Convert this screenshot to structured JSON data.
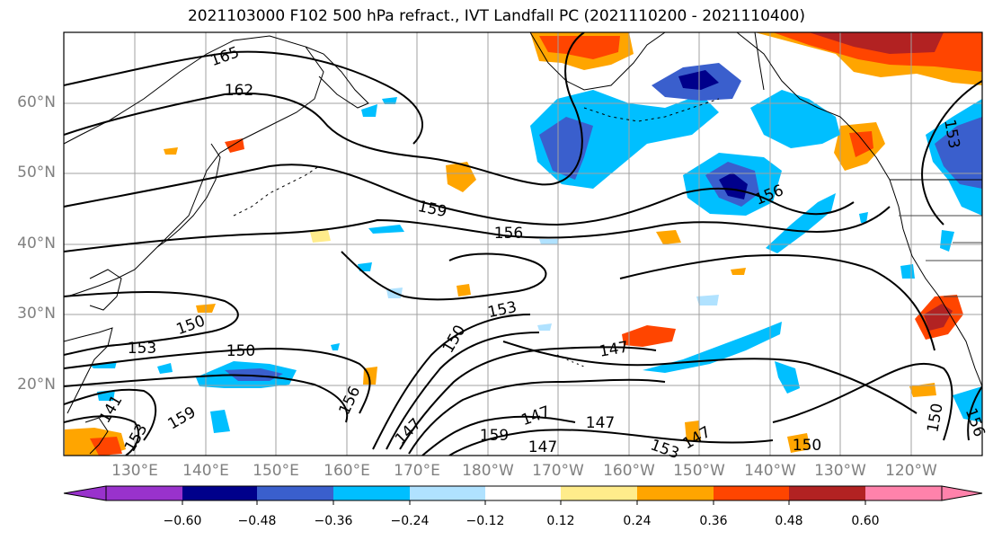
{
  "title": "2021103000 F102 500 hPa refract., IVT Landfall PC (2021110200 - 2021110400)",
  "lat_labels": [
    "60°N",
    "50°N",
    "40°N",
    "30°N",
    "20°N"
  ],
  "lon_labels": [
    "130°E",
    "140°E",
    "150°E",
    "160°E",
    "170°E",
    "180°W",
    "170°W",
    "160°W",
    "150°W",
    "140°W",
    "130°W",
    "120°W"
  ],
  "contour_labels": [
    "165",
    "162",
    "159",
    "156",
    "156",
    "153",
    "150",
    "150",
    "153",
    "150",
    "147",
    "147",
    "147",
    "147",
    "159",
    "147",
    "153",
    "150",
    "147",
    "150",
    "153",
    "156",
    "141",
    "153",
    "159",
    "156"
  ],
  "colorbar": {
    "ticks": [
      "−0.60",
      "−0.48",
      "−0.36",
      "−0.24",
      "−0.12",
      "0.12",
      "0.24",
      "0.36",
      "0.48",
      "0.60"
    ],
    "colors": [
      "#9932cc",
      "#00008b",
      "#3a5fcd",
      "#00bfff",
      "#b0e2ff",
      "#ffffff",
      "#ffec8b",
      "#ffa500",
      "#ff4500",
      "#b22222",
      "#ff82ab"
    ]
  }
}
